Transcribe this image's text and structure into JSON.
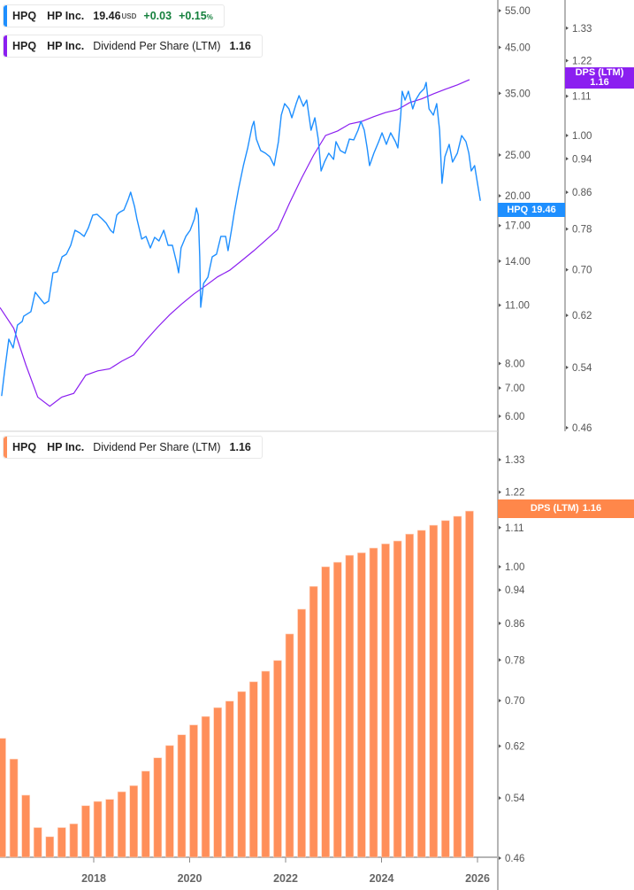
{
  "legend_price": {
    "ticker": "HPQ",
    "name": "HP Inc.",
    "price": "19.46",
    "currency": "USD",
    "change": "+0.03",
    "change_pct": "+0.15",
    "pct_sign": "%"
  },
  "legend_dps_top": {
    "ticker": "HPQ",
    "name": "HP Inc.",
    "metric": "Dividend Per Share (LTM)",
    "value": "1.16"
  },
  "legend_dps_bottom": {
    "ticker": "HPQ",
    "name": "HP Inc.",
    "metric": "Dividend Per Share (LTM)",
    "value": "1.16"
  },
  "tags": {
    "price": {
      "label": "HPQ",
      "value": "19.46"
    },
    "dps_top": {
      "label": "DPS (LTM)",
      "value": "1.16"
    },
    "dps_bottom": {
      "label": "DPS (LTM)",
      "value": "1.16"
    }
  },
  "colors": {
    "price": "#1e8fff",
    "dps_line": "#8b1ff0",
    "dps_bars": "#ff8f5a",
    "dps_tag": "#ff874a",
    "positive": "#15803d"
  },
  "chart_data": [
    {
      "type": "line",
      "series": [
        {
          "name": "HPQ",
          "unit": "USD"
        }
      ],
      "y_scale": "log",
      "y_ticks": [
        "55.00",
        "45.00",
        "35.00",
        "25.00",
        "20.00",
        "17.00",
        "14.00",
        "11.00",
        "8.00",
        "7.00",
        "6.00"
      ],
      "x_ticks": [
        "2018",
        "2020",
        "2022",
        "2024",
        "2026"
      ],
      "points": [
        [
          2016.08,
          6.7
        ],
        [
          2016.14,
          7.64
        ],
        [
          2016.23,
          9.14
        ],
        [
          2016.32,
          8.71
        ],
        [
          2016.41,
          9.87
        ],
        [
          2016.51,
          10.07
        ],
        [
          2016.54,
          10.36
        ],
        [
          2016.69,
          10.62
        ],
        [
          2016.78,
          11.81
        ],
        [
          2016.88,
          11.42
        ],
        [
          2016.97,
          11.09
        ],
        [
          2017.06,
          11.25
        ],
        [
          2017.15,
          13.13
        ],
        [
          2017.24,
          13.2
        ],
        [
          2017.34,
          14.33
        ],
        [
          2017.43,
          14.54
        ],
        [
          2017.52,
          15.26
        ],
        [
          2017.61,
          16.57
        ],
        [
          2017.71,
          16.33
        ],
        [
          2017.8,
          16.02
        ],
        [
          2017.89,
          16.81
        ],
        [
          2017.98,
          17.99
        ],
        [
          2018.07,
          18.08
        ],
        [
          2018.17,
          17.64
        ],
        [
          2018.26,
          17.22
        ],
        [
          2018.35,
          16.57
        ],
        [
          2018.41,
          16.33
        ],
        [
          2018.48,
          17.99
        ],
        [
          2018.53,
          18.25
        ],
        [
          2018.63,
          18.52
        ],
        [
          2018.72,
          19.63
        ],
        [
          2018.77,
          20.4
        ],
        [
          2018.85,
          18.88
        ],
        [
          2018.9,
          17.64
        ],
        [
          2019.0,
          15.79
        ],
        [
          2019.09,
          16.02
        ],
        [
          2019.18,
          15.04
        ],
        [
          2019.27,
          15.94
        ],
        [
          2019.36,
          15.63
        ],
        [
          2019.46,
          16.57
        ],
        [
          2019.55,
          15.26
        ],
        [
          2019.64,
          15.26
        ],
        [
          2019.73,
          13.85
        ],
        [
          2019.77,
          13.13
        ],
        [
          2019.82,
          15.04
        ],
        [
          2019.92,
          16.02
        ],
        [
          2020.01,
          16.57
        ],
        [
          2020.1,
          17.64
        ],
        [
          2020.14,
          18.7
        ],
        [
          2020.18,
          17.99
        ],
        [
          2020.21,
          14.33
        ],
        [
          2020.23,
          10.88
        ],
        [
          2020.29,
          12.39
        ],
        [
          2020.38,
          12.82
        ],
        [
          2020.47,
          14.33
        ],
        [
          2020.56,
          14.54
        ],
        [
          2020.65,
          16.02
        ],
        [
          2020.75,
          16.02
        ],
        [
          2020.8,
          14.82
        ],
        [
          2020.88,
          16.81
        ],
        [
          2020.93,
          18.25
        ],
        [
          2021.02,
          20.8
        ],
        [
          2021.12,
          23.59
        ],
        [
          2021.21,
          25.98
        ],
        [
          2021.3,
          29.18
        ],
        [
          2021.34,
          30.04
        ],
        [
          2021.39,
          27.27
        ],
        [
          2021.48,
          25.61
        ],
        [
          2021.58,
          25.24
        ],
        [
          2021.67,
          24.76
        ],
        [
          2021.76,
          23.59
        ],
        [
          2021.85,
          26.88
        ],
        [
          2021.91,
          31.08
        ],
        [
          2021.98,
          33.09
        ],
        [
          2022.07,
          32.15
        ],
        [
          2022.13,
          30.63
        ],
        [
          2022.22,
          33.09
        ],
        [
          2022.28,
          34.57
        ],
        [
          2022.37,
          32.62
        ],
        [
          2022.44,
          33.74
        ],
        [
          2022.53,
          28.62
        ],
        [
          2022.61,
          30.63
        ],
        [
          2022.68,
          27.27
        ],
        [
          2022.74,
          22.91
        ],
        [
          2022.81,
          24.05
        ],
        [
          2022.9,
          25.24
        ],
        [
          2023.0,
          24.4
        ],
        [
          2023.05,
          26.88
        ],
        [
          2023.14,
          25.61
        ],
        [
          2023.24,
          25.24
        ],
        [
          2023.33,
          27.27
        ],
        [
          2023.42,
          27.14
        ],
        [
          2023.51,
          28.62
        ],
        [
          2023.57,
          30.04
        ],
        [
          2023.64,
          28.62
        ],
        [
          2023.7,
          25.98
        ],
        [
          2023.75,
          23.59
        ],
        [
          2023.84,
          25.24
        ],
        [
          2023.94,
          26.88
        ],
        [
          2024.01,
          28.21
        ],
        [
          2024.1,
          26.49
        ],
        [
          2024.19,
          28.21
        ],
        [
          2024.29,
          26.88
        ],
        [
          2024.34,
          25.98
        ],
        [
          2024.4,
          31.08
        ],
        [
          2024.43,
          35.41
        ],
        [
          2024.49,
          33.74
        ],
        [
          2024.56,
          35.41
        ],
        [
          2024.65,
          32.15
        ],
        [
          2024.71,
          33.74
        ],
        [
          2024.8,
          35.07
        ],
        [
          2024.89,
          35.93
        ],
        [
          2024.93,
          37.16
        ],
        [
          2024.99,
          32.15
        ],
        [
          2025.08,
          31.08
        ],
        [
          2025.15,
          33.09
        ],
        [
          2025.21,
          28.62
        ],
        [
          2025.26,
          21.41
        ],
        [
          2025.32,
          24.76
        ],
        [
          2025.41,
          26.49
        ],
        [
          2025.48,
          24.05
        ],
        [
          2025.58,
          25.24
        ],
        [
          2025.67,
          27.8
        ],
        [
          2025.76,
          26.88
        ],
        [
          2025.82,
          25.24
        ],
        [
          2025.87,
          22.91
        ],
        [
          2025.94,
          23.59
        ],
        [
          2026.0,
          21.41
        ],
        [
          2026.06,
          19.46
        ]
      ]
    },
    {
      "type": "line",
      "series": [
        {
          "name": "DPS (LTM)"
        }
      ],
      "y_scale": "log",
      "y_ticks": [
        "1.33",
        "1.22",
        "1.11",
        "1.00",
        "0.94",
        "0.86",
        "0.78",
        "0.70",
        "0.62",
        "0.54",
        "0.46"
      ],
      "note_values_from": "dps_bars"
    },
    {
      "type": "bar",
      "series": [
        {
          "name": "DPS (LTM)"
        }
      ],
      "y_scale": "log",
      "y_ticks": [
        "1.33",
        "1.22",
        "1.11",
        "1.00",
        "0.94",
        "0.86",
        "0.78",
        "0.70",
        "0.62",
        "0.54",
        "0.46"
      ],
      "x_ticks": [
        "2018",
        "2020",
        "2022",
        "2024",
        "2026"
      ],
      "categories": [
        "2016-02",
        "2016-05",
        "2016-08",
        "2016-11",
        "2017-02",
        "2017-05",
        "2017-08",
        "2017-11",
        "2018-02",
        "2018-05",
        "2018-08",
        "2018-11",
        "2019-02",
        "2019-05",
        "2019-08",
        "2019-11",
        "2020-02",
        "2020-05",
        "2020-08",
        "2020-11",
        "2021-02",
        "2021-05",
        "2021-08",
        "2021-11",
        "2022-02",
        "2022-05",
        "2022-08",
        "2022-11",
        "2023-02",
        "2023-05",
        "2023-08",
        "2023-11",
        "2024-02",
        "2024-05",
        "2024-08",
        "2024-11",
        "2025-02",
        "2025-05",
        "2025-08",
        "2025-11"
      ],
      "values": [
        0.633,
        0.599,
        0.544,
        0.499,
        0.487,
        0.499,
        0.504,
        0.529,
        0.535,
        0.538,
        0.549,
        0.558,
        0.58,
        0.601,
        0.621,
        0.639,
        0.656,
        0.671,
        0.687,
        0.699,
        0.717,
        0.736,
        0.757,
        0.779,
        0.836,
        0.893,
        0.949,
        1.0,
        1.012,
        1.031,
        1.038,
        1.051,
        1.063,
        1.071,
        1.091,
        1.102,
        1.117,
        1.131,
        1.144,
        1.16
      ]
    }
  ]
}
